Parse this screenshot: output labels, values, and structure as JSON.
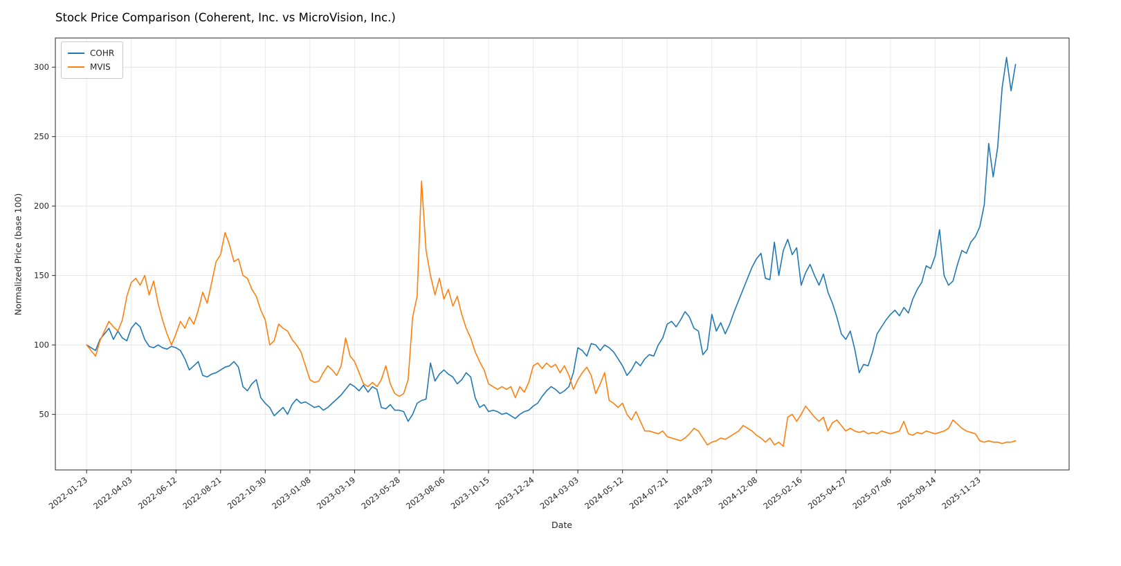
{
  "chart_data": {
    "type": "line",
    "title": "Stock Price Comparison (Coherent, Inc. vs MicroVision, Inc.)",
    "xlabel": "Date",
    "ylabel": "Normalized Price (base 100)",
    "x_start_date": "2022-01-23",
    "x_step_days": 7,
    "num_points": 209,
    "x_tick_indices": [
      0,
      10,
      20,
      30,
      40,
      50,
      60,
      70,
      80,
      90,
      100,
      110,
      120,
      130,
      140,
      150,
      160,
      170,
      180,
      190,
      200
    ],
    "x_tick_labels": [
      "2022-01-23",
      "2022-04-03",
      "2022-06-12",
      "2022-08-21",
      "2022-10-30",
      "2023-01-08",
      "2023-03-19",
      "2023-05-28",
      "2023-08-06",
      "2023-10-15",
      "2023-12-24",
      "2024-03-03",
      "2024-05-12",
      "2024-07-21",
      "2024-09-29",
      "2024-12-08",
      "2025-02-16",
      "2025-04-27",
      "2025-07-06",
      "2025-09-14",
      "2025-11-23"
    ],
    "yticks": [
      50,
      100,
      150,
      200,
      250,
      300
    ],
    "ylim": [
      10,
      321
    ],
    "grid": true,
    "legend_position": "upper-left",
    "series": [
      {
        "name": "COHR",
        "label": "COHR",
        "color": "#1f77b4",
        "values": [
          100,
          98,
          96,
          104,
          108,
          112,
          104,
          110,
          105,
          103,
          112,
          116,
          113,
          104,
          99,
          98,
          100,
          98,
          97,
          99,
          98,
          96,
          90,
          82,
          85,
          88,
          78,
          77,
          79,
          80,
          82,
          84,
          85,
          88,
          84,
          70,
          67,
          72,
          75,
          62,
          58,
          55,
          49,
          52,
          55,
          50,
          57,
          61,
          58,
          59,
          57,
          55,
          56,
          53,
          55,
          58,
          61,
          64,
          68,
          72,
          70,
          67,
          71,
          66,
          70,
          68,
          55,
          54,
          57,
          53,
          53,
          52,
          45,
          50,
          58,
          60,
          61,
          87,
          74,
          79,
          82,
          79,
          77,
          72,
          75,
          80,
          77,
          62,
          55,
          57,
          52,
          53,
          52,
          50,
          51,
          49,
          47,
          50,
          52,
          53,
          56,
          58,
          63,
          67,
          70,
          68,
          65,
          67,
          70,
          80,
          98,
          96,
          92,
          101,
          100,
          96,
          100,
          98,
          95,
          90,
          85,
          78,
          82,
          88,
          85,
          90,
          93,
          92,
          100,
          105,
          115,
          117,
          113,
          118,
          124,
          120,
          112,
          110,
          93,
          97,
          122,
          110,
          116,
          108,
          115,
          124,
          132,
          140,
          148,
          156,
          162,
          166,
          148,
          147,
          174,
          150,
          168,
          176,
          165,
          170,
          143,
          152,
          158,
          150,
          143,
          151,
          138,
          130,
          120,
          108,
          104,
          110,
          97,
          80,
          86,
          85,
          95,
          108,
          113,
          118,
          122,
          125,
          121,
          127,
          123,
          133,
          140,
          145,
          157,
          155,
          164,
          183,
          150,
          143,
          146,
          158,
          168,
          166,
          174,
          178,
          185,
          201,
          245,
          221,
          242,
          285,
          307,
          283,
          302
        ]
      },
      {
        "name": "MVIS",
        "label": "MVIS",
        "color": "#ff7f0e",
        "values": [
          100,
          96,
          92,
          103,
          110,
          117,
          113,
          110,
          118,
          135,
          145,
          148,
          143,
          150,
          136,
          146,
          130,
          118,
          108,
          100,
          108,
          117,
          112,
          120,
          115,
          125,
          138,
          130,
          145,
          160,
          165,
          181,
          172,
          160,
          162,
          150,
          148,
          140,
          135,
          125,
          118,
          100,
          103,
          115,
          112,
          110,
          104,
          100,
          95,
          85,
          75,
          73,
          74,
          80,
          85,
          82,
          78,
          85,
          105,
          92,
          88,
          80,
          72,
          70,
          73,
          70,
          75,
          85,
          72,
          65,
          63,
          65,
          75,
          120,
          135,
          218,
          168,
          150,
          136,
          148,
          133,
          140,
          128,
          135,
          122,
          112,
          105,
          95,
          88,
          82,
          72,
          70,
          68,
          70,
          68,
          70,
          62,
          70,
          66,
          73,
          85,
          87,
          83,
          87,
          84,
          86,
          80,
          85,
          78,
          68,
          75,
          80,
          84,
          78,
          65,
          72,
          80,
          60,
          58,
          55,
          58,
          50,
          46,
          52,
          45,
          38,
          38,
          37,
          36,
          38,
          34,
          33,
          32,
          31,
          33,
          36,
          40,
          38,
          33,
          28,
          30,
          31,
          33,
          32,
          34,
          36,
          38,
          42,
          40,
          38,
          35,
          33,
          30,
          33,
          28,
          30,
          27,
          48,
          50,
          45,
          50,
          56,
          52,
          48,
          45,
          48,
          38,
          44,
          46,
          42,
          38,
          40,
          38,
          37,
          38,
          36,
          37,
          36,
          38,
          37,
          36,
          37,
          38,
          45,
          36,
          35,
          37,
          36,
          38,
          37,
          36,
          37,
          38,
          40,
          46,
          43,
          40,
          38,
          37,
          36,
          31,
          30,
          31,
          30,
          30,
          29,
          30,
          30,
          31
        ]
      }
    ]
  }
}
